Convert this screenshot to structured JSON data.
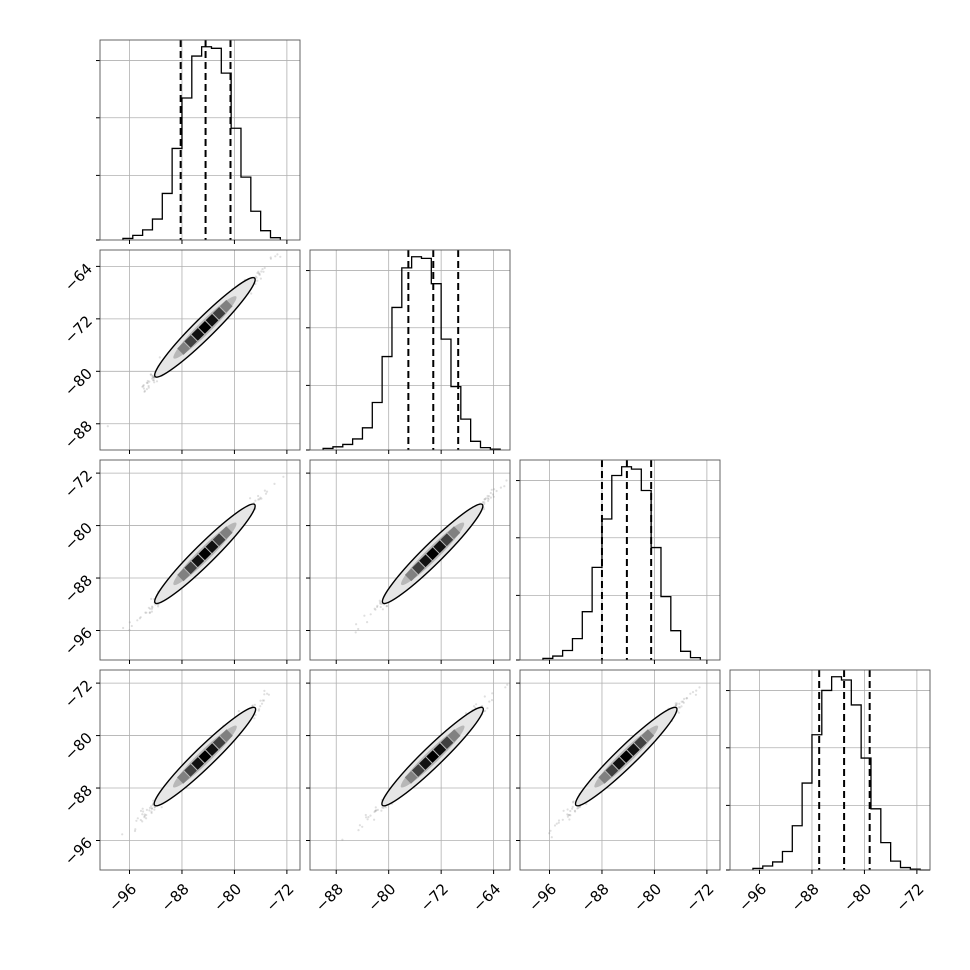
{
  "chart_data": {
    "type": "corner",
    "n_params": 4,
    "grid": true,
    "ticks": {
      "p0": {
        "values": [
          -96,
          -88,
          -80,
          -72
        ],
        "labels": [
          "−96",
          "−88",
          "−80",
          "−72"
        ],
        "range": [
          -100.5,
          -70
        ]
      },
      "p1": {
        "values": [
          -88,
          -80,
          -72,
          -64
        ],
        "labels": [
          "−88",
          "−80",
          "−72",
          "−64"
        ],
        "range": [
          -92,
          -61.5
        ]
      },
      "p2": {
        "values": [
          -96,
          -88,
          -80,
          -72
        ],
        "labels": [
          "−96",
          "−88",
          "−80",
          "−72"
        ],
        "range": [
          -100.5,
          -70
        ]
      },
      "p3": {
        "values": [
          -96,
          -88,
          -80,
          -72
        ],
        "labels": [
          "−96",
          "−88",
          "−80",
          "−72"
        ],
        "range": [
          -100.5,
          -70
        ]
      }
    },
    "histograms": [
      {
        "param": "p0",
        "bin_edges": [
          -97,
          -95.5,
          -94,
          -92.5,
          -91,
          -89.5,
          -88,
          -86.5,
          -85,
          -83.5,
          -82,
          -80.5,
          -79,
          -77.5,
          -76,
          -74.5,
          -73
        ],
        "counts": [
          0.2,
          0.6,
          1.3,
          2.7,
          6.0,
          11.8,
          18.3,
          23.7,
          24.9,
          24.7,
          21.5,
          14.4,
          8.1,
          3.7,
          1.2,
          0.3
        ],
        "quantiles": [
          -88.2,
          -84.4,
          -80.6
        ]
      },
      {
        "param": "p1",
        "bin_edges": [
          -90,
          -88.5,
          -87,
          -85.5,
          -84,
          -82.5,
          -81,
          -79.5,
          -78,
          -76.5,
          -75,
          -73.5,
          -72,
          -70.5,
          -69,
          -67.5,
          -66,
          -64.5,
          -63
        ],
        "counts": [
          0.2,
          0.4,
          0.7,
          1.4,
          2.8,
          6.0,
          11.8,
          18.0,
          23.0,
          24.4,
          24.2,
          21.0,
          14.0,
          8.0,
          3.9,
          1.1,
          0.3,
          0.1
        ],
        "quantiles": [
          -77.0,
          -73.2,
          -69.4
        ]
      },
      {
        "param": "p2",
        "bin_edges": [
          -97,
          -95.5,
          -94,
          -92.5,
          -91,
          -89.5,
          -88,
          -86.5,
          -85,
          -83.5,
          -82,
          -80.5,
          -79,
          -77.5,
          -76,
          -74.5,
          -73
        ],
        "counts": [
          0.2,
          0.5,
          1.2,
          2.7,
          6.1,
          11.7,
          17.8,
          23.3,
          24.4,
          24.1,
          21.4,
          14.2,
          8.0,
          3.7,
          1.1,
          0.3
        ],
        "quantiles": [
          -88.0,
          -84.2,
          -80.5
        ]
      },
      {
        "param": "p3",
        "bin_edges": [
          -97,
          -95.5,
          -94,
          -92.5,
          -91,
          -89.5,
          -88,
          -86.5,
          -85,
          -83.5,
          -82,
          -80.5,
          -79,
          -77.5,
          -76,
          -74.5,
          -73,
          -71.5,
          -70
        ],
        "counts": [
          0.2,
          0.5,
          1.0,
          2.3,
          5.5,
          10.8,
          16.8,
          22.3,
          24.0,
          23.6,
          20.5,
          13.9,
          7.6,
          3.4,
          1.1,
          0.3,
          0.1,
          0.0
        ],
        "quantiles": [
          -86.9,
          -83.1,
          -79.2
        ]
      }
    ],
    "scatter_panels": [
      {
        "x": "p0",
        "y": "p1",
        "slope": 1.0,
        "x_center": -84.5,
        "y_center": -73.3
      },
      {
        "x": "p0",
        "y": "p2",
        "slope": 1.0,
        "x_center": -84.5,
        "y_center": -84.3
      },
      {
        "x": "p1",
        "y": "p2",
        "slope": 1.0,
        "x_center": -73.3,
        "y_center": -84.3
      },
      {
        "x": "p0",
        "y": "p3",
        "slope": 0.98,
        "x_center": -84.5,
        "y_center": -83.2
      },
      {
        "x": "p1",
        "y": "p3",
        "slope": 0.98,
        "x_center": -73.3,
        "y_center": -83.2
      },
      {
        "x": "p2",
        "y": "p3",
        "slope": 0.98,
        "x_center": -84.3,
        "y_center": -83.2
      }
    ],
    "colors": {
      "line": "#000000",
      "grid": "#b0b0b0",
      "points": "#808080"
    }
  }
}
